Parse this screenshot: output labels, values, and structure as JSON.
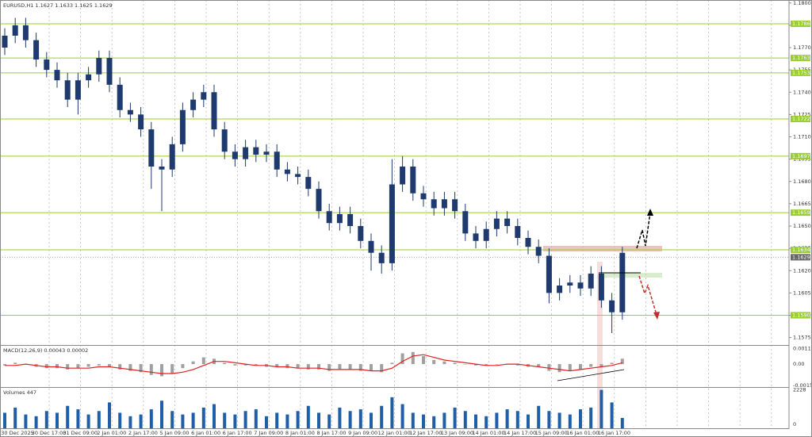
{
  "chart_data": [
    {
      "type": "candlestick",
      "title": "EURUSD,H1  1.1627 1.1633 1.1625 1.1629",
      "color": "#1e3a6e",
      "open": [
        1.177,
        1.1778,
        1.1785,
        1.1775,
        1.1762,
        1.1755,
        1.1748,
        1.1735,
        1.1748,
        1.1752,
        1.1763,
        1.1745,
        1.1728,
        1.1725,
        1.1715,
        1.169,
        1.1688,
        1.1705,
        1.1728,
        1.1735,
        1.174,
        1.1715,
        1.17,
        1.1695,
        1.1703,
        1.1698,
        1.17,
        1.1688,
        1.1685,
        1.1683,
        1.1675,
        1.166,
        1.1652,
        1.1658,
        1.165,
        1.164,
        1.1632,
        1.1625,
        1.1678,
        1.169,
        1.1672,
        1.1668,
        1.1662,
        1.1668,
        1.166,
        1.1645,
        1.164,
        1.1648,
        1.1655,
        1.165,
        1.1642,
        1.1636,
        1.163,
        1.1605,
        1.161,
        1.1612,
        1.1608,
        1.1618,
        1.16,
        1.1592
      ],
      "high": [
        1.1783,
        1.179,
        1.179,
        1.178,
        1.1767,
        1.176,
        1.1753,
        1.1753,
        1.1757,
        1.1768,
        1.1768,
        1.175,
        1.1733,
        1.173,
        1.172,
        1.1695,
        1.171,
        1.1733,
        1.174,
        1.1745,
        1.1745,
        1.172,
        1.1705,
        1.1708,
        1.1708,
        1.1705,
        1.1705,
        1.1693,
        1.169,
        1.1688,
        1.168,
        1.1665,
        1.1663,
        1.1663,
        1.1655,
        1.1645,
        1.1637,
        1.1695,
        1.1697,
        1.1695,
        1.1677,
        1.1673,
        1.1673,
        1.1673,
        1.1665,
        1.165,
        1.1653,
        1.166,
        1.166,
        1.1655,
        1.1647,
        1.1641,
        1.1635,
        1.1615,
        1.1617,
        1.1617,
        1.1623,
        1.1623,
        1.1605,
        1.1636
      ],
      "low": [
        1.1765,
        1.1773,
        1.177,
        1.1757,
        1.175,
        1.1743,
        1.173,
        1.1725,
        1.1743,
        1.1747,
        1.174,
        1.1723,
        1.172,
        1.171,
        1.1675,
        1.166,
        1.1683,
        1.17,
        1.1723,
        1.173,
        1.171,
        1.1695,
        1.169,
        1.169,
        1.1693,
        1.1693,
        1.1683,
        1.168,
        1.1678,
        1.167,
        1.1655,
        1.1647,
        1.1647,
        1.1645,
        1.1635,
        1.162,
        1.1618,
        1.162,
        1.1673,
        1.1667,
        1.1663,
        1.1657,
        1.1657,
        1.1655,
        1.164,
        1.1635,
        1.1635,
        1.1643,
        1.1645,
        1.1637,
        1.1631,
        1.1625,
        1.1598,
        1.16,
        1.1605,
        1.1603,
        1.1603,
        1.1595,
        1.1578,
        1.1587
      ],
      "close": [
        1.1778,
        1.1785,
        1.1775,
        1.1762,
        1.1755,
        1.1748,
        1.1735,
        1.1748,
        1.1752,
        1.1763,
        1.1745,
        1.1728,
        1.1725,
        1.1715,
        1.169,
        1.1688,
        1.1705,
        1.1728,
        1.1735,
        1.174,
        1.1715,
        1.17,
        1.1695,
        1.1703,
        1.1698,
        1.17,
        1.1688,
        1.1685,
        1.1683,
        1.1675,
        1.166,
        1.1652,
        1.1658,
        1.165,
        1.164,
        1.1632,
        1.1625,
        1.1678,
        1.169,
        1.1672,
        1.1668,
        1.1662,
        1.1668,
        1.166,
        1.1645,
        1.164,
        1.1648,
        1.1655,
        1.165,
        1.1642,
        1.1636,
        1.163,
        1.1605,
        1.161,
        1.1612,
        1.1608,
        1.1618,
        1.16,
        1.1592,
        1.1632
      ],
      "ylim": [
        1.157,
        1.1802
      ],
      "yticks": [
        {
          "value": 1.18,
          "label": "1.1800"
        },
        1.1785,
        {
          "value": 1.177,
          "label": "1.1770"
        },
        1.1755,
        {
          "value": 1.174,
          "label": "1.1740"
        },
        1.1725,
        {
          "value": 1.171,
          "label": "1.1710"
        },
        1.1695,
        {
          "value": 1.168,
          "label": "1.1680"
        },
        1.1665,
        {
          "value": 1.165,
          "label": "1.1650"
        },
        1.1635,
        {
          "value": 1.162,
          "label": "1.1620"
        },
        1.1605,
        {
          "value": 1.159,
          "label": "1.1590"
        },
        1.1575
      ],
      "levels": [
        1.1786,
        1.1763,
        1.1753,
        1.1722,
        1.1697,
        1.1659,
        1.1634,
        {
          "value": 1.159,
          "label": "1.1590"
        }
      ],
      "level_color": "#9acd32",
      "last_price": 1.1629,
      "time_labels": [
        "30 Dec 2025",
        "30 Dec 17:00",
        "31 Dec 09:00",
        "2 Jan 01:00",
        "2 Jan 17:00",
        "5 Jan 09:00",
        "6 Jan 01:00",
        "6 Jan 17:00",
        "7 Jan 09:00",
        "8 Jan 01:00",
        "8 Jan 17:00",
        "9 Jan 09:00",
        "12 Jan 01:00",
        "12 Jan 17:00",
        "13 Jan 09:00",
        "14 Jan 01:00",
        "14 Jan 17:00",
        "15 Jan 09:00",
        "16 Jan 01:00",
        "16 Jan 17:00"
      ]
    },
    {
      "type": "macd",
      "title": "MACD(12,26,9) 0.00043 0.00002",
      "color": "#a0a0a0",
      "signal_color": "#e02020",
      "histogram": [
        -0.0001,
        0.0001,
        0.0,
        -0.0002,
        -0.0003,
        -0.0003,
        -0.0004,
        -0.0003,
        -0.0002,
        -0.0001,
        -0.0002,
        -0.0004,
        -0.0005,
        -0.0006,
        -0.0008,
        -0.0009,
        -0.0007,
        -0.0003,
        0.0002,
        0.0005,
        0.0004,
        0.0001,
        -0.0001,
        -0.0001,
        -0.0001,
        -0.0002,
        -0.0002,
        -0.0003,
        -0.0003,
        -0.0004,
        -0.0004,
        -0.0005,
        -0.0004,
        -0.0004,
        -0.0005,
        -0.0005,
        -0.0006,
        0.0001,
        0.0008,
        0.0009,
        0.0006,
        0.0003,
        0.0002,
        0.0001,
        0.0,
        -0.0001,
        -0.0001,
        0.0,
        0.0,
        -0.0001,
        -0.0002,
        -0.0002,
        -0.0005,
        -0.0006,
        -0.0005,
        -0.0004,
        -0.0002,
        -0.0002,
        0.0001,
        0.0004
      ],
      "signal": [
        -0.0001,
        -0.0001,
        0.0,
        -0.0001,
        -0.0002,
        -0.0002,
        -0.0003,
        -0.0003,
        -0.0003,
        -0.0002,
        -0.0002,
        -0.0003,
        -0.0004,
        -0.0005,
        -0.0006,
        -0.0007,
        -0.0007,
        -0.0006,
        -0.0004,
        -0.0001,
        0.0002,
        0.0002,
        0.0001,
        0.0,
        -0.0001,
        -0.0001,
        -0.0002,
        -0.0002,
        -0.0003,
        -0.0003,
        -0.0003,
        -0.0004,
        -0.0004,
        -0.0004,
        -0.0004,
        -0.0005,
        -0.0005,
        -0.0003,
        0.0002,
        0.0006,
        0.0007,
        0.0005,
        0.0003,
        0.0002,
        0.0001,
        0.0,
        -0.0001,
        -0.0001,
        0.0,
        0.0,
        -0.0001,
        -0.0002,
        -0.0003,
        -0.0004,
        -0.0005,
        -0.0004,
        -0.0003,
        -0.0002,
        -0.0001,
        0.0001
      ],
      "ylim": [
        -0.0017,
        0.0013
      ],
      "yticks": [
        0.00116,
        {
          "value": 0,
          "label": "0.00"
        },
        -0.00157
      ]
    },
    {
      "type": "volume",
      "title": "Volumes 447",
      "color": "#1f5fa8",
      "values": [
        900,
        1200,
        800,
        700,
        1000,
        900,
        1300,
        1100,
        800,
        1000,
        1500,
        900,
        700,
        800,
        1100,
        1600,
        1000,
        800,
        900,
        1200,
        1400,
        900,
        800,
        1000,
        1100,
        700,
        900,
        800,
        1000,
        1300,
        900,
        800,
        1200,
        1000,
        1100,
        900,
        1300,
        1800,
        1400,
        900,
        800,
        700,
        900,
        1200,
        1000,
        800,
        700,
        900,
        1100,
        1000,
        800,
        1300,
        1000,
        900,
        800,
        1100,
        1200,
        2228,
        1500,
        600
      ],
      "ylim": [
        0,
        2300
      ],
      "yticks": [
        0,
        2228
      ]
    }
  ]
}
